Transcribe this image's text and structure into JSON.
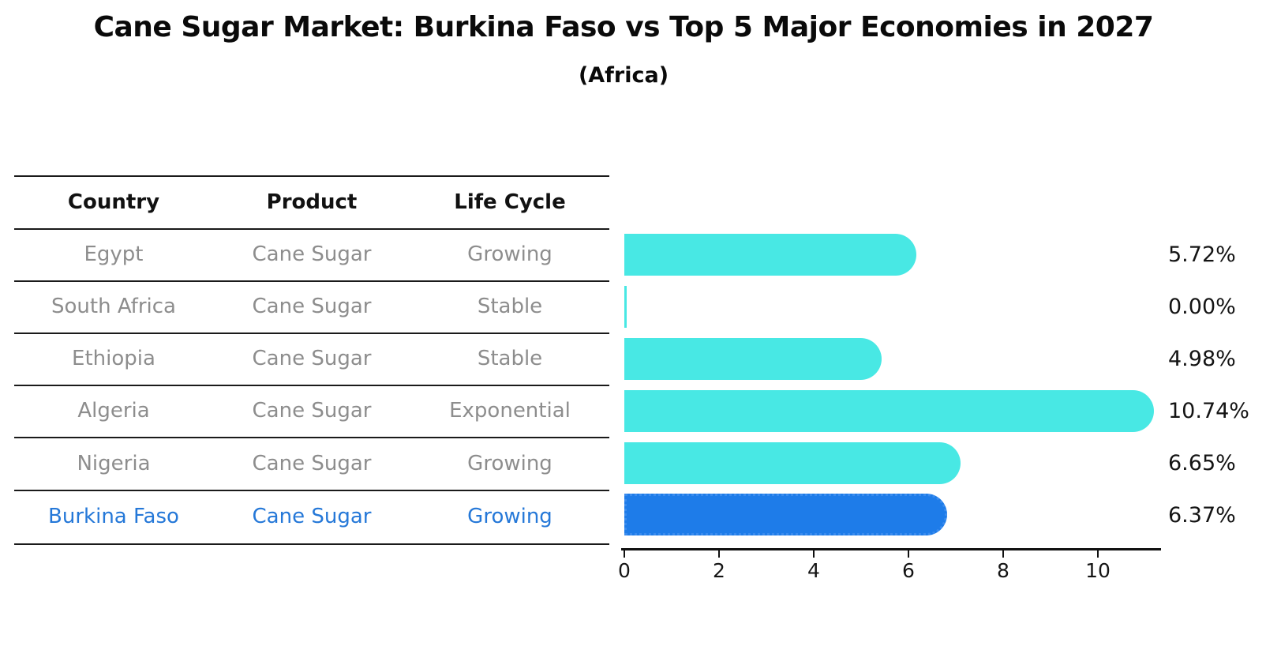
{
  "header": {
    "title": "Cane Sugar Market: Burkina Faso vs Top 5 Major Economies in 2027",
    "subtitle": "(Africa)"
  },
  "table": {
    "columns": [
      "Country",
      "Product",
      "Life Cycle"
    ],
    "rows": [
      {
        "country": "Egypt",
        "product": "Cane Sugar",
        "life_cycle": "Growing"
      },
      {
        "country": "South Africa",
        "product": "Cane Sugar",
        "life_cycle": "Stable"
      },
      {
        "country": "Ethiopia",
        "product": "Cane Sugar",
        "life_cycle": "Stable"
      },
      {
        "country": "Algeria",
        "product": "Cane Sugar",
        "life_cycle": "Exponential"
      },
      {
        "country": "Nigeria",
        "product": "Cane Sugar",
        "life_cycle": "Growing"
      },
      {
        "country": "Burkina Faso",
        "product": "Cane Sugar",
        "life_cycle": "Growing"
      }
    ]
  },
  "chart_data": {
    "type": "bar",
    "orientation": "horizontal",
    "title": "Cane Sugar Market: Burkina Faso vs Top 5 Major Economies in 2027",
    "subtitle": "(Africa)",
    "categories": [
      "Egypt",
      "South Africa",
      "Ethiopia",
      "Algeria",
      "Nigeria",
      "Burkina Faso"
    ],
    "values": [
      5.72,
      0.0,
      4.98,
      10.74,
      6.65,
      6.37
    ],
    "value_labels": [
      "5.72%",
      "0.00%",
      "4.98%",
      "10.74%",
      "6.65%",
      "6.37%"
    ],
    "x_ticks": [
      0,
      2,
      4,
      6,
      8,
      10
    ],
    "x_tick_labels": [
      "0",
      "2",
      "4",
      "6",
      "8",
      "10"
    ],
    "xlim": [
      0,
      11.3
    ],
    "grid": false,
    "legend": "none",
    "highlight_index": 5,
    "highlight_category": "Burkina Faso"
  },
  "colors": {
    "bar": "#48e8e4",
    "highlight_bar": "#1e7ce9",
    "highlight_text": "#2578d8",
    "muted_text": "#8d8d8d",
    "text": "#111111",
    "line": "#1a1a1a"
  }
}
